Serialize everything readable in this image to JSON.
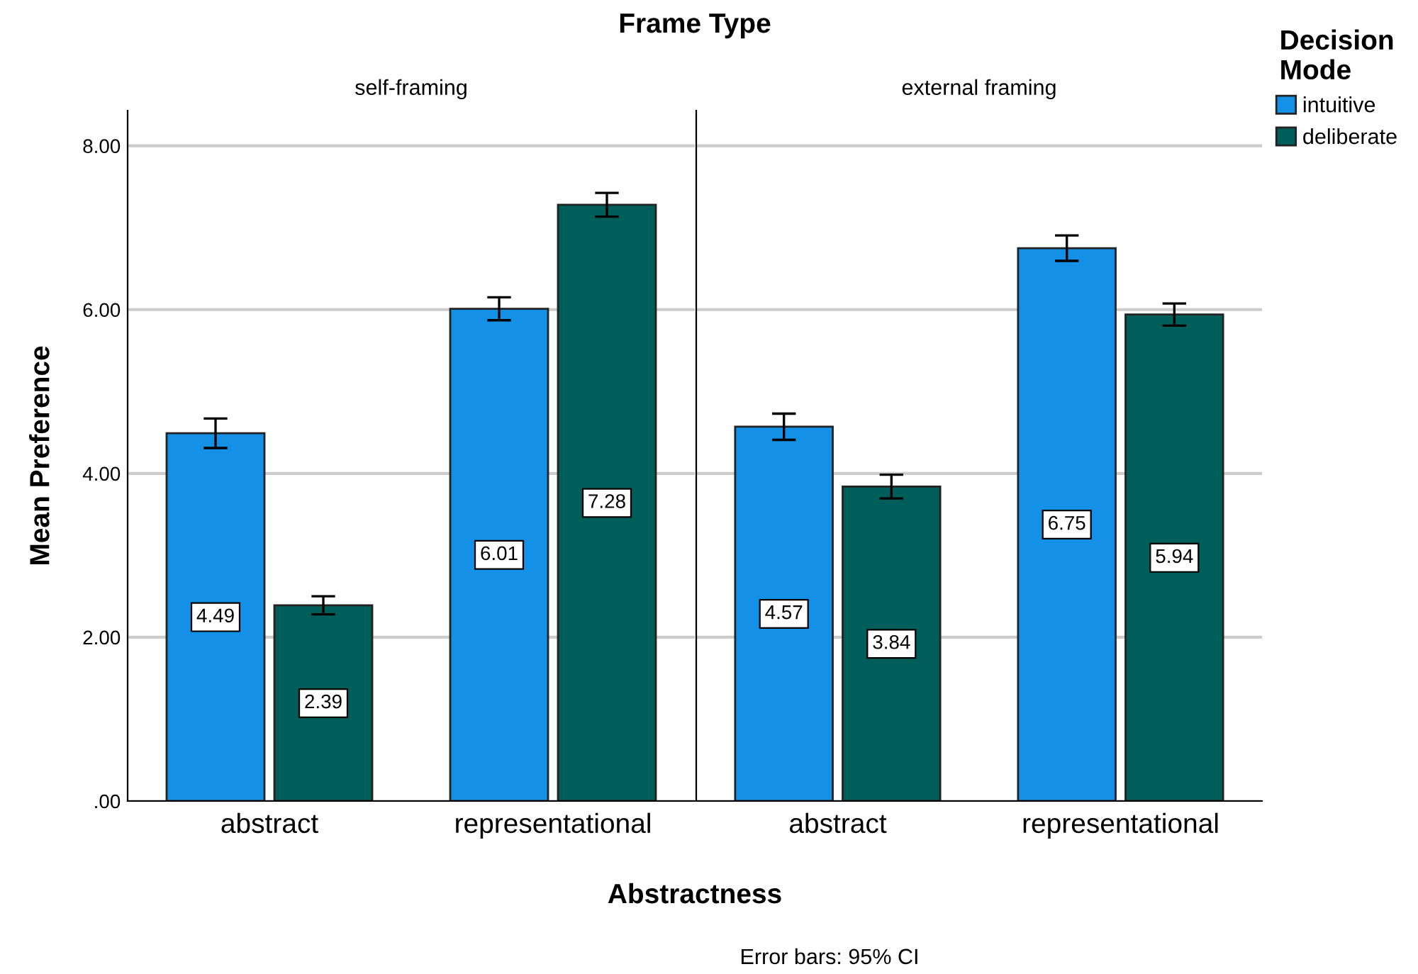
{
  "chart_data": [
    {
      "type": "bar",
      "title": "self-framing",
      "xlabel": "Abstractness",
      "ylabel": "Mean Preference",
      "categories": [
        "abstract",
        "representational"
      ],
      "series": [
        {
          "color": "#1490e6",
          "values": [
            4.49,
            6.01
          ],
          "errors": [
            0.18,
            0.14
          ]
        },
        {
          "color": "#005e5a",
          "values": [
            2.39,
            7.28
          ],
          "errors": [
            0.11,
            0.145
          ]
        }
      ],
      "ylim": [
        0,
        8.43
      ],
      "yticks": [
        {
          "value": 0,
          "label": ".00"
        },
        {
          "value": 2,
          "label": "2.00"
        },
        {
          "value": 4,
          "label": "4.00"
        },
        {
          "value": 6,
          "label": "6.00"
        },
        {
          "value": 8,
          "label": "8.00"
        }
      ],
      "grid": "y",
      "data_labels": true,
      "annotations": [
        "Frame Type",
        "Error bars: 95% CI"
      ]
    },
    {
      "type": "bar",
      "title": "external framing",
      "legend_title": "Decision Mode",
      "categories": [
        "abstract",
        "representational"
      ],
      "series": [
        {
          "name": "intuitive",
          "color": "#1490e6",
          "values": [
            4.57,
            6.75
          ],
          "errors": [
            0.16,
            0.155
          ]
        },
        {
          "name": "deliberate",
          "color": "#005e5a",
          "values": [
            3.84,
            5.94
          ],
          "errors": [
            0.145,
            0.135
          ]
        }
      ],
      "ylim": [
        0,
        8.43
      ],
      "yticks": [
        {
          "value": 0,
          "label": null
        },
        {
          "value": 2,
          "label": null
        },
        {
          "value": 4,
          "label": null
        },
        {
          "value": 6,
          "label": null
        },
        {
          "value": 8,
          "label": null
        }
      ],
      "grid": "y",
      "data_labels": true,
      "legend": "right",
      "tick_labels": "x"
    }
  ]
}
